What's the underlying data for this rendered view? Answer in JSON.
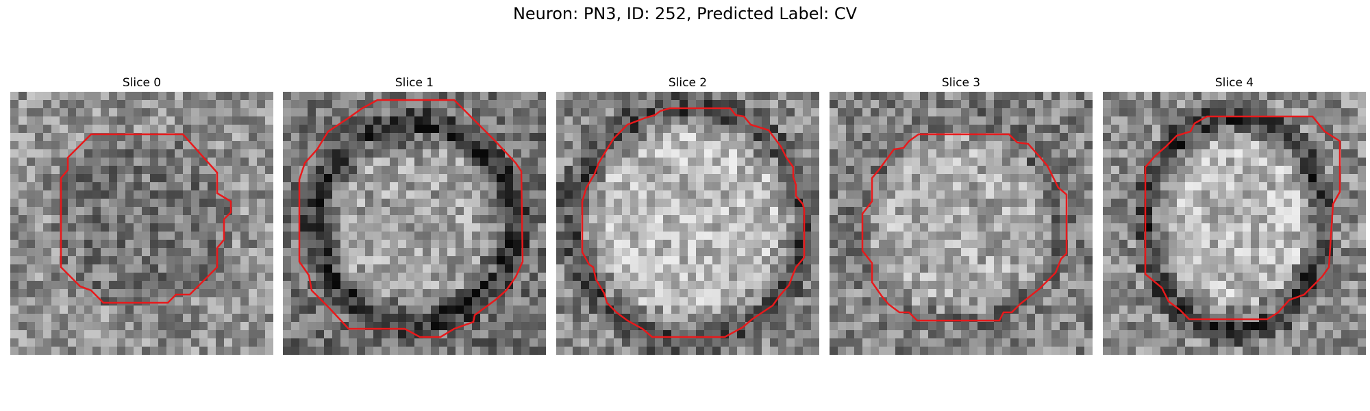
{
  "figure": {
    "title": "Neuron: PN3, ID: 252, Predicted Label: CV"
  },
  "slices": [
    {
      "title": "Slice 0"
    },
    {
      "title": "Slice 1"
    },
    {
      "title": "Slice 2"
    },
    {
      "title": "Slice 3"
    },
    {
      "title": "Slice 4"
    }
  ],
  "style": {
    "contour_color": "#e8191b",
    "colormap": "gray"
  }
}
